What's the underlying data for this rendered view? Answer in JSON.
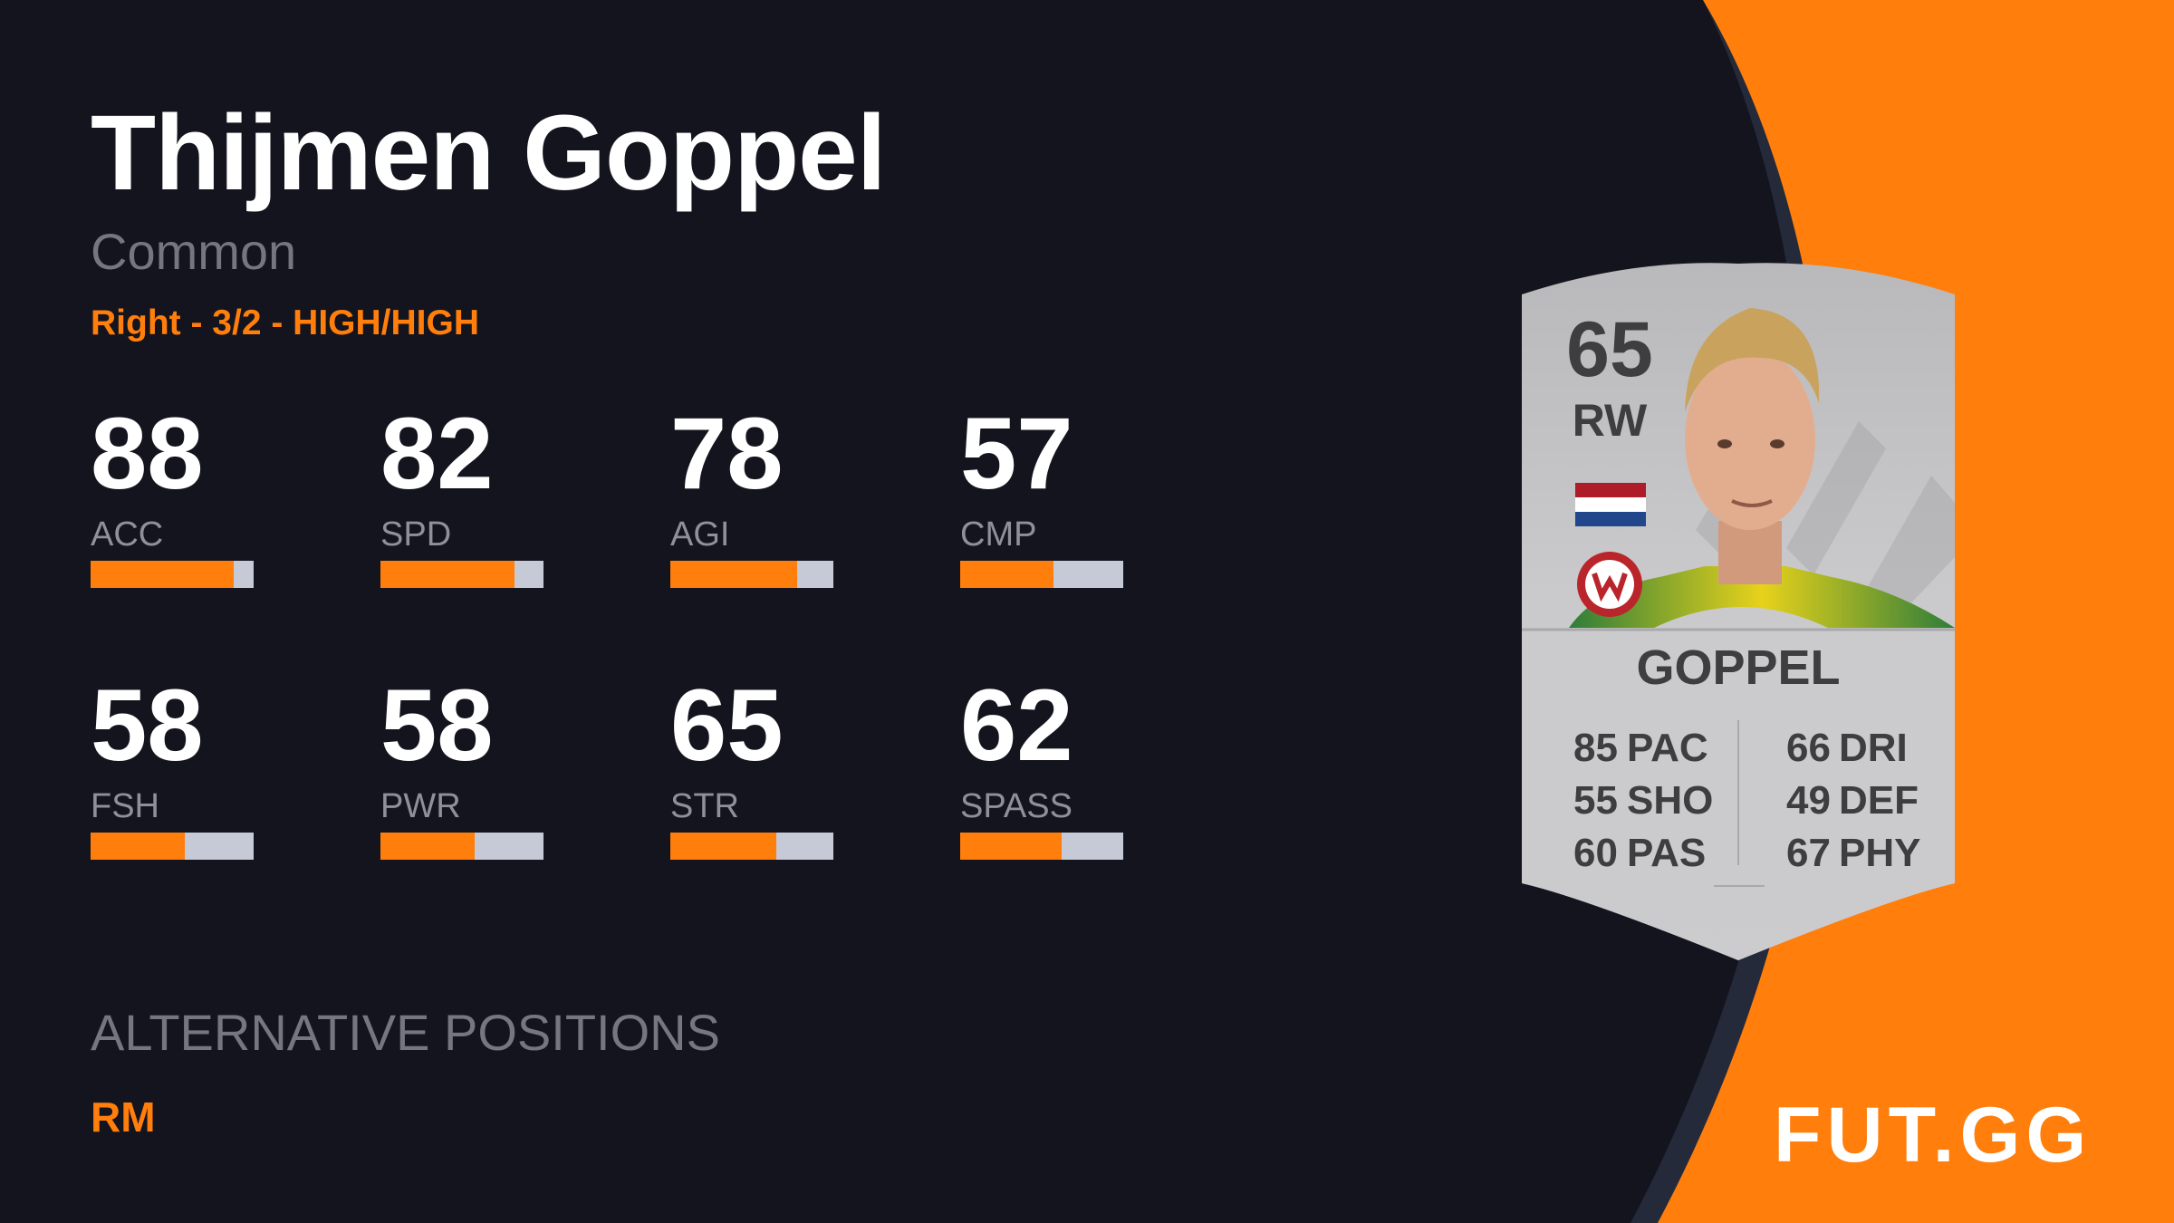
{
  "player": {
    "name": "Thijmen Goppel",
    "rarity": "Common",
    "meta": "Right - 3/2 - HIGH/HIGH"
  },
  "stats": [
    {
      "label": "ACC",
      "value": 88
    },
    {
      "label": "SPD",
      "value": 82
    },
    {
      "label": "AGI",
      "value": 78
    },
    {
      "label": "CMP",
      "value": 57
    },
    {
      "label": "FSH",
      "value": 58
    },
    {
      "label": "PWR",
      "value": 58
    },
    {
      "label": "STR",
      "value": 65
    },
    {
      "label": "SPASS",
      "value": 62
    }
  ],
  "alt_positions": {
    "title": "ALTERNATIVE POSITIONS",
    "values": "RM"
  },
  "card": {
    "rating": "65",
    "position": "RW",
    "name": "GOPPEL",
    "left_stats": [
      {
        "value": "85",
        "label": "PAC"
      },
      {
        "value": "55",
        "label": "SHO"
      },
      {
        "value": "60",
        "label": "PAS"
      }
    ],
    "right_stats": [
      {
        "value": "66",
        "label": "DRI"
      },
      {
        "value": "49",
        "label": "DEF"
      },
      {
        "value": "67",
        "label": "PHY"
      }
    ]
  },
  "brand": {
    "logo": "FUT.GG",
    "accent": "#ff7e0c",
    "background": "#13141d"
  }
}
